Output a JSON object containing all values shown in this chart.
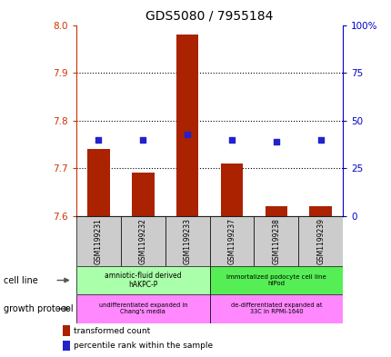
{
  "title": "GDS5080 / 7955184",
  "samples": [
    "GSM1199231",
    "GSM1199232",
    "GSM1199233",
    "GSM1199237",
    "GSM1199238",
    "GSM1199239"
  ],
  "red_values": [
    7.74,
    7.69,
    7.98,
    7.71,
    7.62,
    7.62
  ],
  "blue_values": [
    7.76,
    7.76,
    7.77,
    7.76,
    7.755,
    7.76
  ],
  "ylim_left": [
    7.6,
    8.0
  ],
  "ylim_right": [
    0,
    100
  ],
  "yticks_left": [
    7.6,
    7.7,
    7.8,
    7.9,
    8.0
  ],
  "yticks_right": [
    0,
    25,
    50,
    75,
    100
  ],
  "ytick_labels_right": [
    "0",
    "25",
    "50",
    "75",
    "100%"
  ],
  "bar_width": 0.5,
  "bar_color": "#aa2200",
  "dot_color": "#2222cc",
  "dot_size": 25,
  "cell_line_label_1": "amniotic-fluid derived\nhAKPC-P",
  "cell_line_label_2": "immortalized podocyte cell line\nhIPod",
  "cell_line_color_1": "#aaffaa",
  "cell_line_color_2": "#55ee55",
  "growth_protocol_label_1": "undifferentiated expanded in\nChang's media",
  "growth_protocol_label_2": "de-differentiated expanded at\n33C in RPMI-1640",
  "growth_protocol_color": "#ff88ff",
  "legend_red": "transformed count",
  "legend_blue": "percentile rank within the sample",
  "tick_color_left": "#cc3300",
  "tick_color_right": "#0000cc",
  "tick_label_area_color": "#cccccc",
  "left_label_cell_line": "cell line",
  "left_label_growth": "growth protocol"
}
